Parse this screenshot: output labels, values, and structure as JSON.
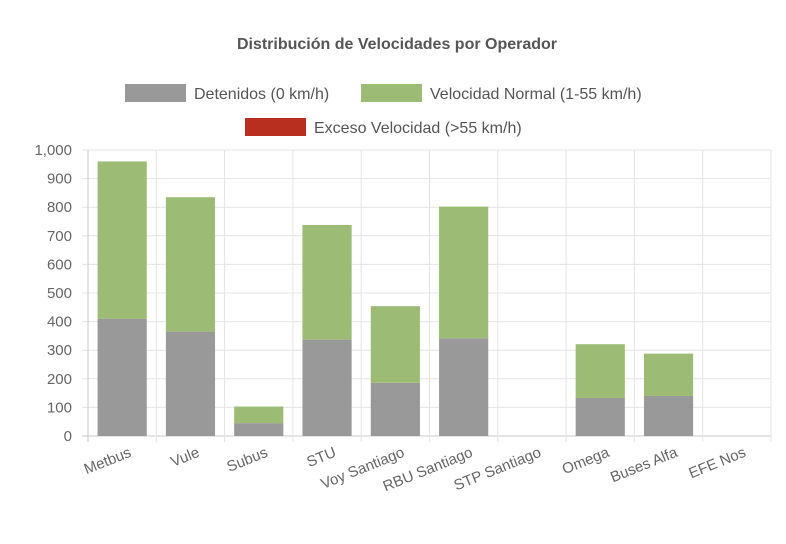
{
  "chart_data": {
    "type": "bar",
    "stacked": true,
    "title": "Distribución de Velocidades por Operador",
    "categories": [
      "Metbus",
      "Vule",
      "Subus",
      "STU",
      "Voy Santiago",
      "RBU Santiago",
      "STP Santiago",
      "Omega",
      "Buses Alfa",
      "EFE Nos"
    ],
    "series": [
      {
        "name": "Detenidos (0 km/h)",
        "color": "#999999",
        "values": [
          410,
          365,
          45,
          337,
          186,
          342,
          0,
          133,
          140,
          0
        ]
      },
      {
        "name": "Velocidad Normal (1-55 km/h)",
        "color": "#9cbb74",
        "values": [
          550,
          470,
          58,
          401,
          268,
          460,
          0,
          188,
          148,
          0
        ]
      },
      {
        "name": "Exceso Velocidad (>55 km/h)",
        "color": "#b82e1f",
        "values": [
          0,
          0,
          0,
          0,
          0,
          0,
          0,
          0,
          0,
          0
        ]
      }
    ],
    "ylim": [
      0,
      1000
    ],
    "yticks": [
      "0",
      "100",
      "200",
      "300",
      "400",
      "500",
      "600",
      "700",
      "800",
      "900",
      "1,000"
    ],
    "grid": true,
    "legend_position": "top"
  }
}
